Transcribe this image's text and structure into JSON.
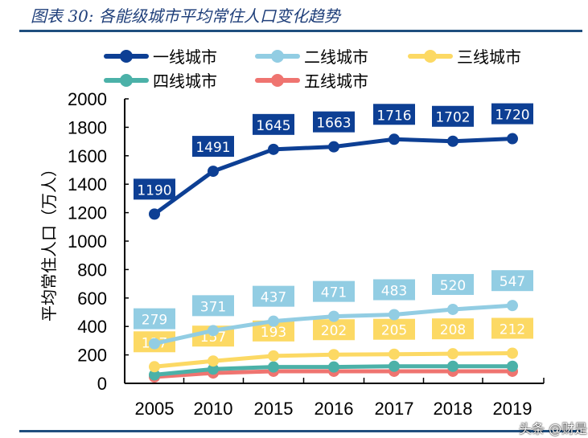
{
  "title": "图表 30:  各能级城市平均常住人口变化趋势",
  "watermark": "头条 @财是",
  "chart_data": {
    "type": "line",
    "title": "",
    "xlabel": "",
    "ylabel": "平均常住人口（万人）",
    "categories": [
      "2005",
      "2010",
      "2015",
      "2016",
      "2017",
      "2018",
      "2019"
    ],
    "ylim": [
      0,
      2000
    ],
    "yticks": [
      0,
      200,
      400,
      600,
      800,
      1000,
      1200,
      1400,
      1600,
      1800,
      2000
    ],
    "grid": false,
    "legend": "top",
    "series": [
      {
        "name": "一线城市",
        "color": "#0d3f94",
        "values": [
          1190,
          1491,
          1645,
          1663,
          1716,
          1702,
          1720
        ],
        "labeled": true,
        "label_color": "#0d3f94",
        "label_text": "#ffffff"
      },
      {
        "name": "二线城市",
        "color": "#92cde3",
        "values": [
          279,
          371,
          437,
          471,
          483,
          520,
          547
        ],
        "labeled": true,
        "label_color": "#92cde3",
        "label_text": "#ffffff"
      },
      {
        "name": "三线城市",
        "color": "#fcd964",
        "values": [
          117,
          157,
          193,
          202,
          205,
          208,
          212
        ],
        "labeled": true,
        "label_color": "#fcd964",
        "label_text": "#ffffff"
      },
      {
        "name": "四线城市",
        "color": "#4bb1a8",
        "values": [
          60,
          100,
          115,
          115,
          120,
          120,
          120
        ],
        "labeled": false
      },
      {
        "name": "五线城市",
        "color": "#ef7470",
        "values": [
          45,
          73,
          85,
          85,
          85,
          85,
          85
        ],
        "labeled": false
      }
    ]
  }
}
